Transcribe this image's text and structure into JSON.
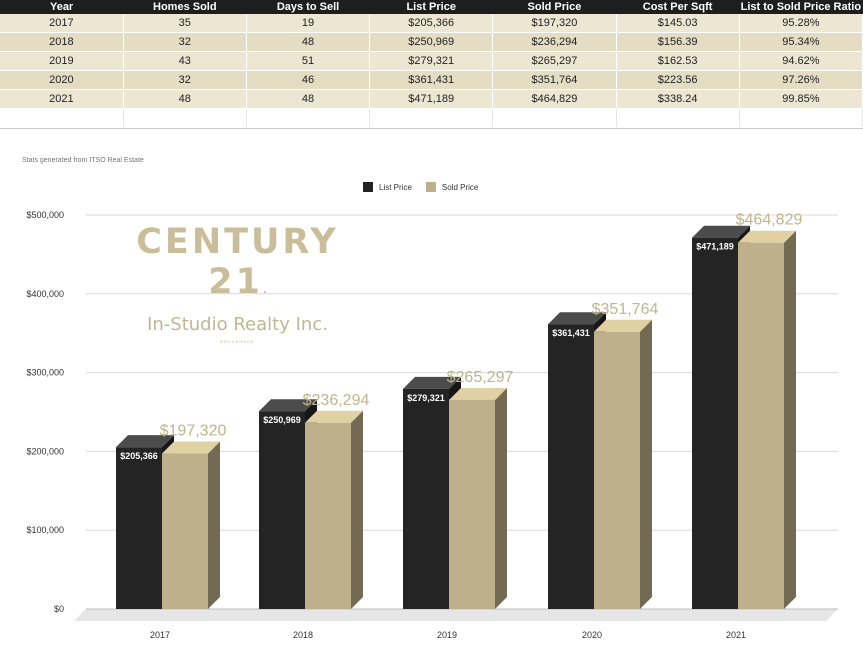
{
  "table": {
    "headers": [
      "Year",
      "Homes Sold",
      "Days to Sell",
      "List Price",
      "Sold Price",
      "Cost Per Sqft",
      "List to Sold Price Ratio"
    ],
    "rows": [
      [
        "2017",
        "35",
        "19",
        "$205,366",
        "$197,320",
        "$145.03",
        "95.28%"
      ],
      [
        "2018",
        "32",
        "48",
        "$250,969",
        "$236,294",
        "$156.39",
        "95.34%"
      ],
      [
        "2019",
        "43",
        "51",
        "$279,321",
        "$265,297",
        "$162.53",
        "94.62%"
      ],
      [
        "2020",
        "32",
        "46",
        "$361,431",
        "$351,764",
        "$223.56",
        "97.26%"
      ],
      [
        "2021",
        "48",
        "48",
        "$471,189",
        "$464,829",
        "$338.24",
        "99.85%"
      ]
    ]
  },
  "source_note": "Stats generated from ITSO Real Estate",
  "logo": {
    "name": "CENTURY 21",
    "registered": ".",
    "subtitle": "In-Studio Realty Inc.",
    "tag": "BROKERAGE"
  },
  "chart_data": {
    "type": "bar",
    "title": "",
    "xlabel": "",
    "ylabel": "",
    "categories": [
      "2017",
      "2018",
      "2019",
      "2020",
      "2021"
    ],
    "series": [
      {
        "name": "List Price",
        "values": [
          205366,
          250969,
          279321,
          361431,
          471189
        ],
        "labels": [
          "$205,366",
          "$250,969",
          "$279,321",
          "$361,431",
          "$471,189"
        ],
        "color": "#242424"
      },
      {
        "name": "Sold Price",
        "values": [
          197320,
          236294,
          265297,
          351764,
          464829
        ],
        "labels": [
          "$197,320",
          "$236,294",
          "$265,297",
          "$351,764",
          "$464,829"
        ],
        "color": "#beb08a"
      }
    ],
    "ylim": [
      0,
      500000
    ],
    "y_ticks": [
      0,
      100000,
      200000,
      300000,
      400000,
      500000
    ],
    "y_tick_labels": [
      "$0",
      "$100,000",
      "$200,000",
      "$300,000",
      "$400,000",
      "$500,000"
    ],
    "grid": true,
    "legend": "top-center",
    "style": "3d"
  }
}
